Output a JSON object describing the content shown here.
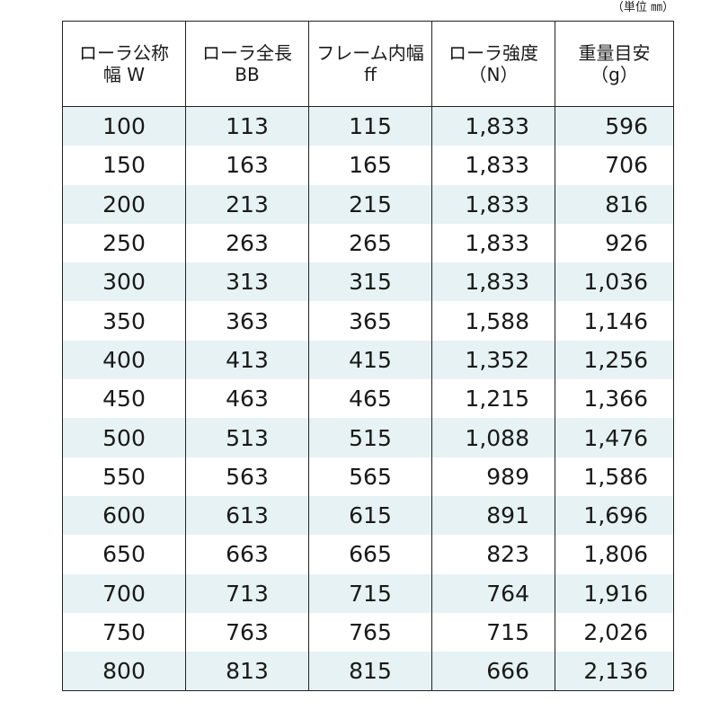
{
  "unit_label": "（単位 ㎜）",
  "headers": [
    {
      "line1": "ローラ公称",
      "line2": "幅 W"
    },
    {
      "line1": "ローラ全長",
      "line2": "BB"
    },
    {
      "line1": "フレーム内幅",
      "line2": "ff"
    },
    {
      "line1": "ローラ強度",
      "line2": "（N）"
    },
    {
      "line1": "重量目安",
      "line2": "（g）"
    }
  ],
  "rows": [
    [
      "100",
      "113",
      "115",
      "1,833",
      "596"
    ],
    [
      "150",
      "163",
      "165",
      "1,833",
      "706"
    ],
    [
      "200",
      "213",
      "215",
      "1,833",
      "816"
    ],
    [
      "250",
      "263",
      "265",
      "1,833",
      "926"
    ],
    [
      "300",
      "313",
      "315",
      "1,833",
      "1,036"
    ],
    [
      "350",
      "363",
      "365",
      "1,588",
      "1,146"
    ],
    [
      "400",
      "413",
      "415",
      "1,352",
      "1,256"
    ],
    [
      "450",
      "463",
      "465",
      "1,215",
      "1,366"
    ],
    [
      "500",
      "513",
      "515",
      "1,088",
      "1,476"
    ],
    [
      "550",
      "563",
      "565",
      "989",
      "1,586"
    ],
    [
      "600",
      "613",
      "615",
      "891",
      "1,696"
    ],
    [
      "650",
      "663",
      "665",
      "823",
      "1,806"
    ],
    [
      "700",
      "713",
      "715",
      "764",
      "1,916"
    ],
    [
      "750",
      "763",
      "765",
      "715",
      "2,026"
    ],
    [
      "800",
      "813",
      "815",
      "666",
      "2,136"
    ]
  ],
  "colors": {
    "shade": "#e6f2f3",
    "border": "#222222"
  }
}
